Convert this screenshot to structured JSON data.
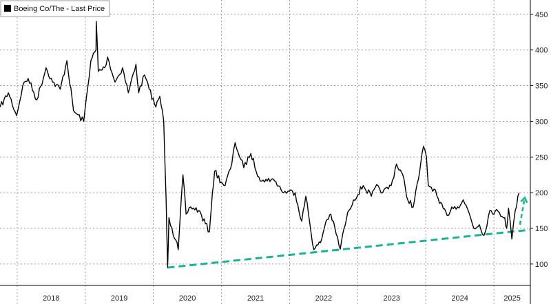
{
  "chart_data": {
    "type": "line",
    "legend": {
      "label": "Boeing Co/The - Last Price",
      "placement": "top-left"
    },
    "x_ticks": [
      "2018",
      "2019",
      "2020",
      "2021",
      "2022",
      "2023",
      "2024",
      "2025"
    ],
    "y_ticks": [
      100,
      150,
      200,
      250,
      300,
      350,
      400,
      450
    ],
    "ylim": [
      70,
      470
    ],
    "xlim": [
      "2017-10-01",
      "2025-07-15"
    ],
    "axis_side": "right",
    "grid": true,
    "series": [
      {
        "name": "Boeing Co/The - Last Price",
        "color": "#000000",
        "points": [
          [
            "2017-10-02",
            320
          ],
          [
            "2017-11-15",
            340
          ],
          [
            "2017-12-29",
            308
          ],
          [
            "2018-01-31",
            350
          ],
          [
            "2018-03-01",
            360
          ],
          [
            "2018-04-16",
            330
          ],
          [
            "2018-06-05",
            375
          ],
          [
            "2018-07-10",
            355
          ],
          [
            "2018-08-20",
            345
          ],
          [
            "2018-09-25",
            385
          ],
          [
            "2018-10-30",
            315
          ],
          [
            "2018-12-24",
            300
          ],
          [
            "2019-01-31",
            385
          ],
          [
            "2019-02-28",
            400
          ],
          [
            "2019-03-01",
            440
          ],
          [
            "2019-03-08",
            400
          ],
          [
            "2019-03-12",
            370
          ],
          [
            "2019-04-15",
            375
          ],
          [
            "2019-05-01",
            390
          ],
          [
            "2019-06-10",
            355
          ],
          [
            "2019-07-20",
            375
          ],
          [
            "2019-08-20",
            340
          ],
          [
            "2019-09-30",
            380
          ],
          [
            "2019-10-15",
            340
          ],
          [
            "2019-11-15",
            365
          ],
          [
            "2019-12-10",
            345
          ],
          [
            "2020-01-15",
            320
          ],
          [
            "2020-02-05",
            335
          ],
          [
            "2020-02-26",
            300
          ],
          [
            "2020-03-10",
            190
          ],
          [
            "2020-03-18",
            95
          ],
          [
            "2020-03-25",
            165
          ],
          [
            "2020-04-10",
            150
          ],
          [
            "2020-05-14",
            120
          ],
          [
            "2020-06-08",
            225
          ],
          [
            "2020-06-25",
            170
          ],
          [
            "2020-07-20",
            180
          ],
          [
            "2020-09-01",
            175
          ],
          [
            "2020-10-28",
            145
          ],
          [
            "2020-11-13",
            200
          ],
          [
            "2020-11-25",
            230
          ],
          [
            "2020-12-31",
            215
          ],
          [
            "2021-01-20",
            210
          ],
          [
            "2021-02-25",
            240
          ],
          [
            "2021-03-15",
            270
          ],
          [
            "2021-04-30",
            235
          ],
          [
            "2021-06-07",
            255
          ],
          [
            "2021-07-20",
            222
          ],
          [
            "2021-08-20",
            215
          ],
          [
            "2021-09-10",
            220
          ],
          [
            "2021-10-20",
            215
          ],
          [
            "2021-11-30",
            200
          ],
          [
            "2021-12-31",
            202
          ],
          [
            "2022-01-31",
            200
          ],
          [
            "2022-03-07",
            160
          ],
          [
            "2022-03-29",
            195
          ],
          [
            "2022-05-11",
            120
          ],
          [
            "2022-06-16",
            130
          ],
          [
            "2022-07-15",
            160
          ],
          [
            "2022-08-10",
            170
          ],
          [
            "2022-09-30",
            121
          ],
          [
            "2022-10-20",
            150
          ],
          [
            "2022-11-15",
            175
          ],
          [
            "2022-12-10",
            190
          ],
          [
            "2023-01-31",
            210
          ],
          [
            "2023-03-15",
            195
          ],
          [
            "2023-04-20",
            210
          ],
          [
            "2023-05-15",
            200
          ],
          [
            "2023-06-30",
            210
          ],
          [
            "2023-07-28",
            240
          ],
          [
            "2023-08-31",
            225
          ],
          [
            "2023-09-20",
            195
          ],
          [
            "2023-10-26",
            180
          ],
          [
            "2023-11-30",
            230
          ],
          [
            "2023-12-20",
            265
          ],
          [
            "2024-01-05",
            250
          ],
          [
            "2024-01-15",
            210
          ],
          [
            "2024-02-15",
            205
          ],
          [
            "2024-03-15",
            185
          ],
          [
            "2024-04-25",
            168
          ],
          [
            "2024-05-20",
            180
          ],
          [
            "2024-06-20",
            180
          ],
          [
            "2024-07-20",
            190
          ],
          [
            "2024-08-20",
            172
          ],
          [
            "2024-09-15",
            150
          ],
          [
            "2024-10-15",
            155
          ],
          [
            "2024-11-08",
            140
          ],
          [
            "2024-12-10",
            175
          ],
          [
            "2025-01-30",
            172
          ],
          [
            "2025-02-28",
            165
          ],
          [
            "2025-03-10",
            150
          ],
          [
            "2025-03-20",
            178
          ],
          [
            "2025-04-07",
            135
          ],
          [
            "2025-04-25",
            175
          ],
          [
            "2025-05-16",
            200
          ]
        ]
      }
    ],
    "trendline": {
      "color": "#19b394",
      "style": "dashed",
      "from": [
        "2020-03-18",
        95
      ],
      "to": [
        "2025-07-15",
        148
      ]
    },
    "arrow": {
      "color": "#19b394",
      "style": "dashed",
      "from": [
        "2025-05-20",
        155
      ],
      "to": [
        "2025-06-15",
        193
      ]
    }
  }
}
